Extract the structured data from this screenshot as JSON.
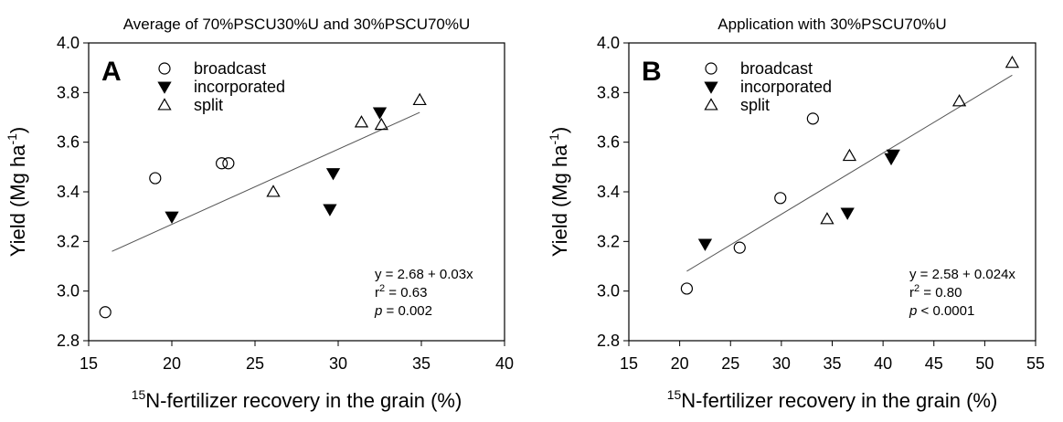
{
  "chart_data": [
    {
      "type": "scatter",
      "panel_label": "A",
      "title": "Average of 70%PSCU30%U and 30%PSCU70%U",
      "x_label": {
        "sup": "15",
        "text": "N-fertilizer recovery in the grain (%)"
      },
      "y_label": {
        "text": "Yield (Mg ha",
        "sup": "-1",
        "end": ")"
      },
      "xlim": [
        15,
        40
      ],
      "xticks": [
        15,
        20,
        25,
        30,
        35,
        40
      ],
      "ylim": [
        2.8,
        4.0
      ],
      "yticks": [
        2.8,
        {
          "value": 3,
          "label": "3.0"
        },
        3.2,
        3.4,
        3.6,
        3.8,
        {
          "value": 4,
          "label": "4.0"
        }
      ],
      "legend": "top-left",
      "series": [
        {
          "name": "broadcast",
          "marker": "circle",
          "color": "#000000",
          "fill": "none",
          "x": [
            16,
            19,
            23,
            23.4
          ],
          "values": [
            2.915,
            3.455,
            3.515,
            3.515
          ]
        },
        {
          "name": "incorporated",
          "marker": "triangle-down",
          "color": "#000000",
          "fill": "#000000",
          "x": [
            20,
            29.5,
            29.7,
            32.5
          ],
          "values": [
            3.3,
            3.33,
            3.475,
            3.72
          ]
        },
        {
          "name": "split",
          "marker": "triangle-up",
          "color": "#000000",
          "fill": "none",
          "x": [
            26.1,
            31.4,
            32.6,
            34.9
          ],
          "values": [
            3.4,
            3.68,
            3.67,
            3.77
          ]
        }
      ],
      "fit": {
        "x": [
          16.4,
          34.9
        ],
        "y": [
          3.16,
          3.72
        ]
      },
      "equation": "y = 2.68 + 0.03x",
      "r2": {
        "symbol": "r",
        "sup": "2",
        "text": " = 0.63"
      },
      "p": {
        "symbol": "p",
        "text": " = 0.002"
      }
    },
    {
      "type": "scatter",
      "panel_label": "B",
      "title": "Application with 30%PSCU70%U",
      "x_label": {
        "sup": "15",
        "text": "N-fertilizer recovery in the grain (%)"
      },
      "y_label": {
        "text": "Yield (Mg ha",
        "sup": "-1",
        "end": ")"
      },
      "xlim": [
        15,
        55
      ],
      "xticks": [
        15,
        20,
        25,
        30,
        35,
        40,
        45,
        50,
        55
      ],
      "ylim": [
        2.8,
        4.0
      ],
      "yticks": [
        2.8,
        {
          "value": 3,
          "label": "3.0"
        },
        3.2,
        3.4,
        3.6,
        3.8,
        {
          "value": 4,
          "label": "4.0"
        }
      ],
      "legend": "top-left",
      "series": [
        {
          "name": "broadcast",
          "marker": "circle",
          "color": "#000000",
          "fill": "none",
          "x": [
            20.7,
            25.9,
            29.9,
            33.1
          ],
          "values": [
            3.01,
            3.175,
            3.375,
            3.695
          ]
        },
        {
          "name": "incorporated",
          "marker": "triangle-down",
          "color": "#000000",
          "fill": "#000000",
          "x": [
            22.5,
            36.5,
            40.8,
            41
          ],
          "values": [
            3.19,
            3.315,
            3.535,
            3.55
          ]
        },
        {
          "name": "split",
          "marker": "triangle-up",
          "color": "#000000",
          "fill": "none",
          "x": [
            34.5,
            36.7,
            47.5,
            52.7
          ],
          "values": [
            3.29,
            3.545,
            3.765,
            3.92
          ]
        }
      ],
      "fit": {
        "x": [
          20.7,
          52.7
        ],
        "y": [
          3.08,
          3.87
        ]
      },
      "equation": "y = 2.58 + 0.024x",
      "r2": {
        "symbol": "r",
        "sup": "2",
        "text": " = 0.80"
      },
      "p": {
        "symbol": "p",
        "text": " < 0.0001"
      }
    }
  ]
}
